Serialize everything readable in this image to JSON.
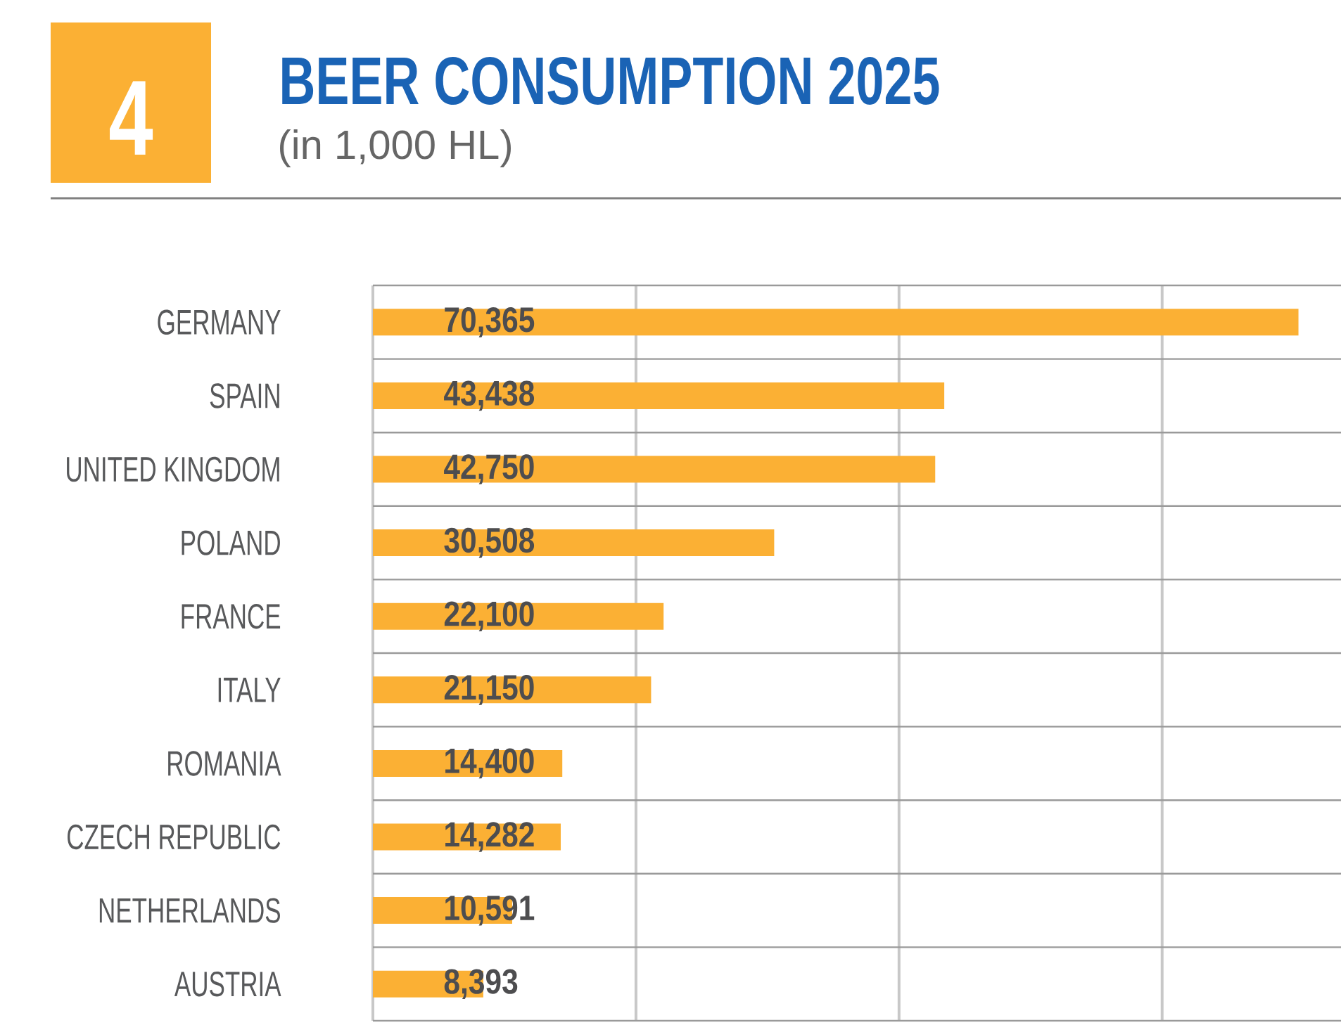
{
  "chart_data": {
    "type": "bar",
    "orientation": "horizontal",
    "title": "BEER CONSUMPTION 2025",
    "subtitle": "(in 1,000 HL)",
    "annotations": [
      "4"
    ],
    "categories": [
      "GERMANY",
      "SPAIN",
      "UNITED KINGDOM",
      "POLAND",
      "FRANCE",
      "ITALY",
      "ROMANIA",
      "CZECH REPUBLIC",
      "NETHERLANDS",
      "AUSTRIA"
    ],
    "values": [
      70365,
      43438,
      42750,
      30508,
      22100,
      21150,
      14400,
      14282,
      10591,
      8393
    ],
    "value_labels": [
      "70,365",
      "43,438",
      "42,750",
      "30,508",
      "22,100",
      "21,150",
      "14,400",
      "14,282",
      "10,591",
      "8,393"
    ],
    "color": "#fbb034",
    "xlim": [
      0,
      73600
    ],
    "xticks": [
      {
        "value": 0,
        "label": null
      },
      {
        "value": 20000,
        "label": null
      },
      {
        "value": 40000,
        "label": null
      },
      {
        "value": 60000,
        "label": null
      }
    ],
    "grid": true,
    "tick_labels": "y"
  }
}
